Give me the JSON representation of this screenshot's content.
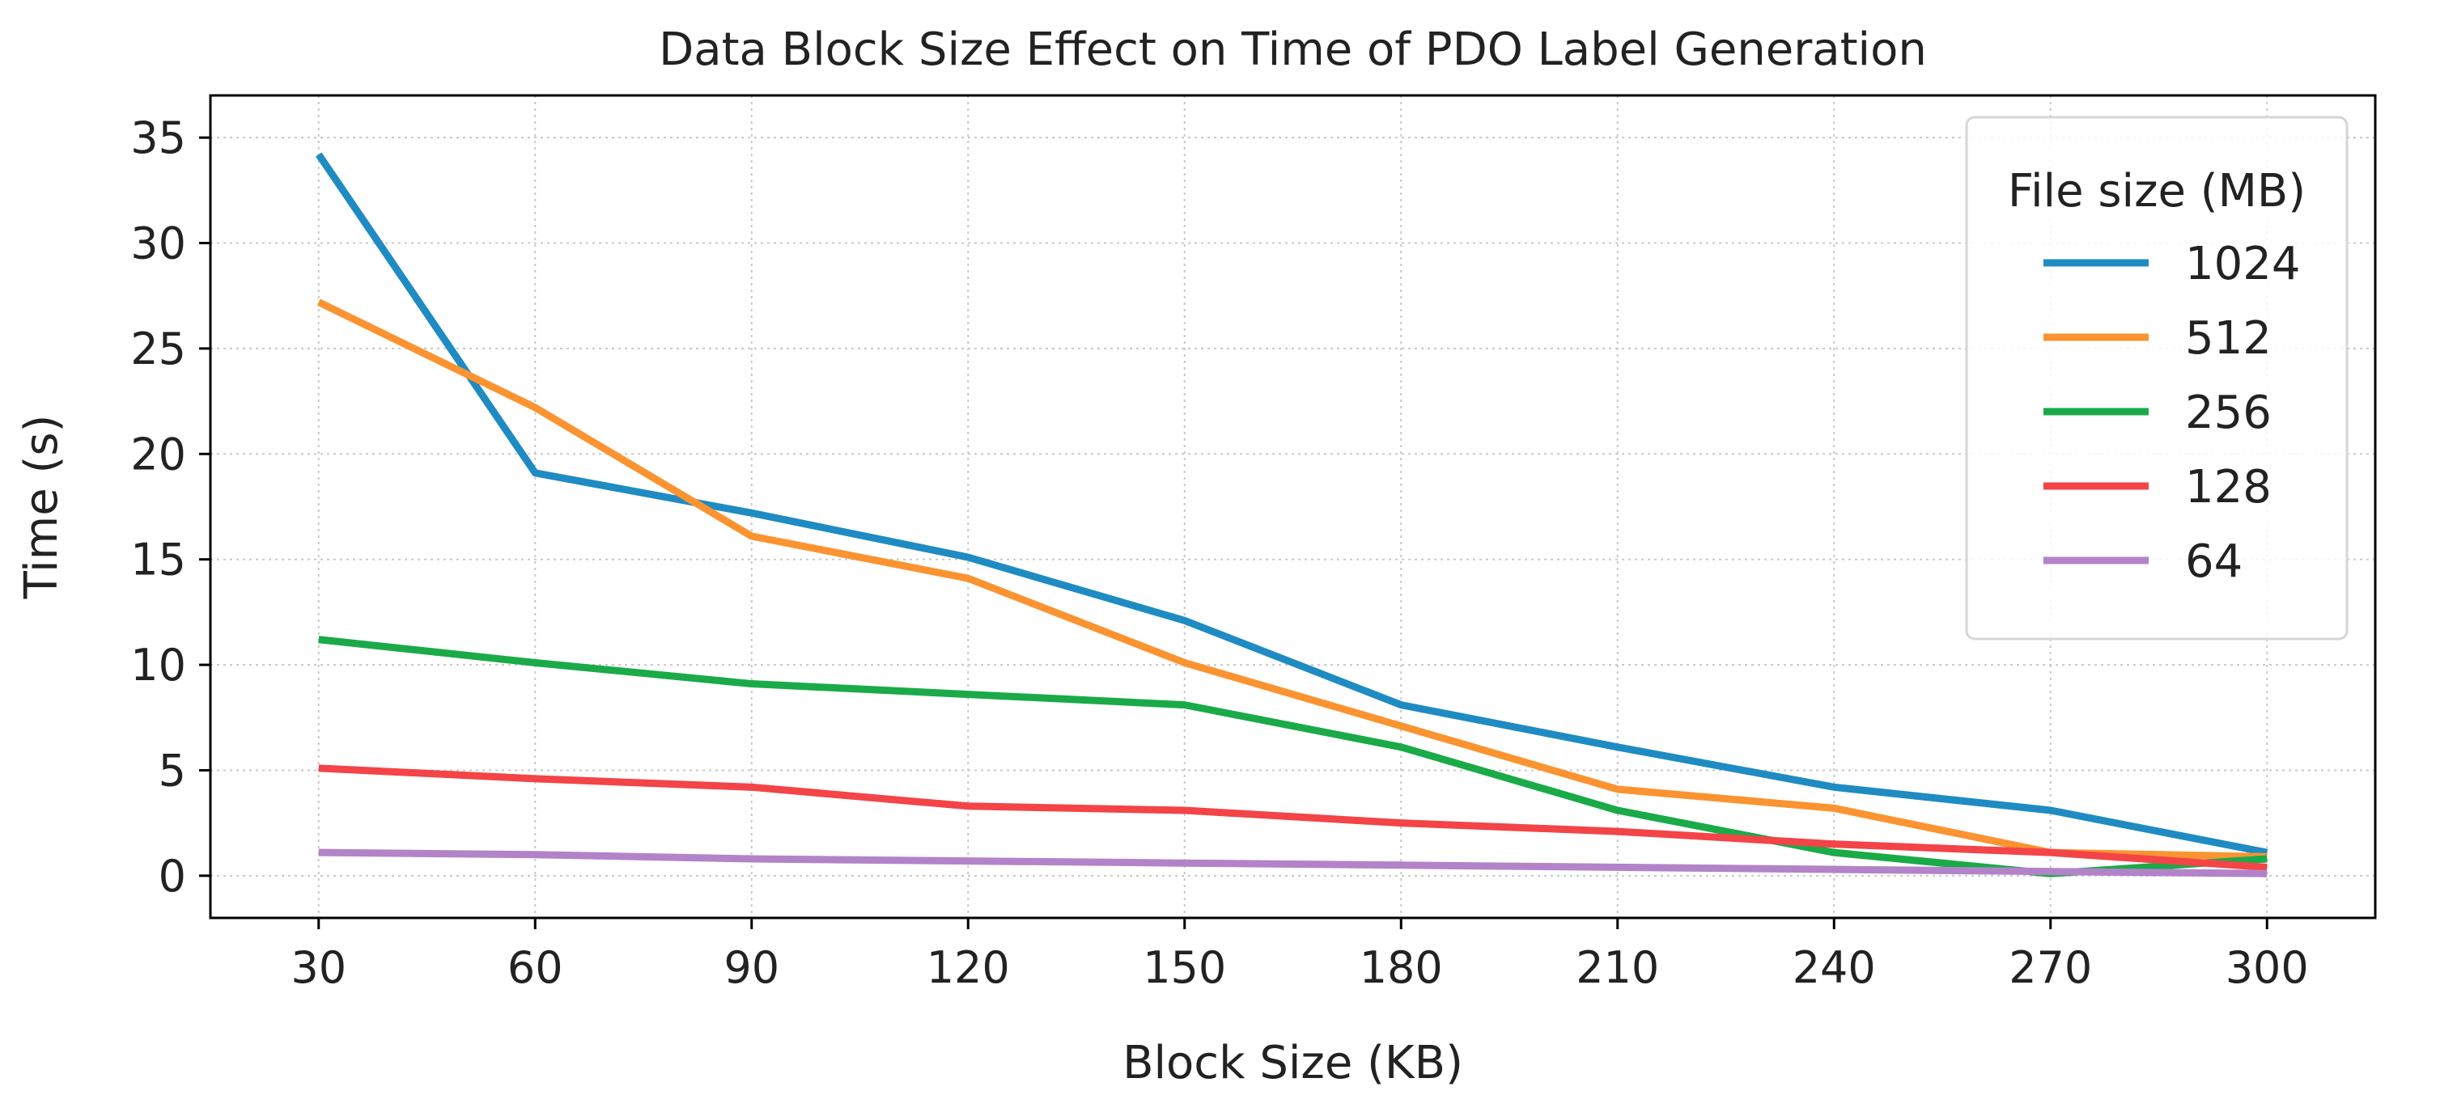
{
  "chart_data": {
    "type": "line",
    "title": "Data Block Size Effect on Time of PDO Label Generation",
    "xlabel": "Block Size (KB)",
    "ylabel": "Time (s)",
    "x": [
      30,
      60,
      90,
      120,
      150,
      180,
      210,
      240,
      270,
      300
    ],
    "xlim": [
      15,
      315
    ],
    "ylim": [
      -2,
      37
    ],
    "xticks": [
      30,
      60,
      90,
      120,
      150,
      180,
      210,
      240,
      270,
      300
    ],
    "yticks": [
      0,
      5,
      10,
      15,
      20,
      25,
      30,
      35
    ],
    "grid": true,
    "legend": {
      "title": "File size (MB)",
      "position": "upper-right"
    },
    "series": [
      {
        "name": "1024",
        "color": "#1f8bc3",
        "values": [
          34.2,
          19.1,
          17.2,
          15.1,
          12.1,
          8.1,
          6.1,
          4.2,
          3.1,
          1.1
        ]
      },
      {
        "name": "512",
        "color": "#fb9331",
        "values": [
          27.2,
          22.2,
          16.1,
          14.1,
          10.1,
          7.1,
          4.1,
          3.2,
          1.1,
          0.9
        ]
      },
      {
        "name": "256",
        "color": "#1aaa48",
        "values": [
          11.2,
          10.1,
          9.1,
          8.6,
          8.1,
          6.1,
          3.1,
          1.1,
          0.1,
          0.8
        ]
      },
      {
        "name": "128",
        "color": "#f34448",
        "values": [
          5.1,
          4.6,
          4.2,
          3.3,
          3.1,
          2.5,
          2.1,
          1.5,
          1.1,
          0.4
        ]
      },
      {
        "name": "64",
        "color": "#b383c9",
        "values": [
          1.1,
          1.0,
          0.8,
          0.7,
          0.6,
          0.5,
          0.4,
          0.3,
          0.2,
          0.1
        ]
      }
    ]
  }
}
